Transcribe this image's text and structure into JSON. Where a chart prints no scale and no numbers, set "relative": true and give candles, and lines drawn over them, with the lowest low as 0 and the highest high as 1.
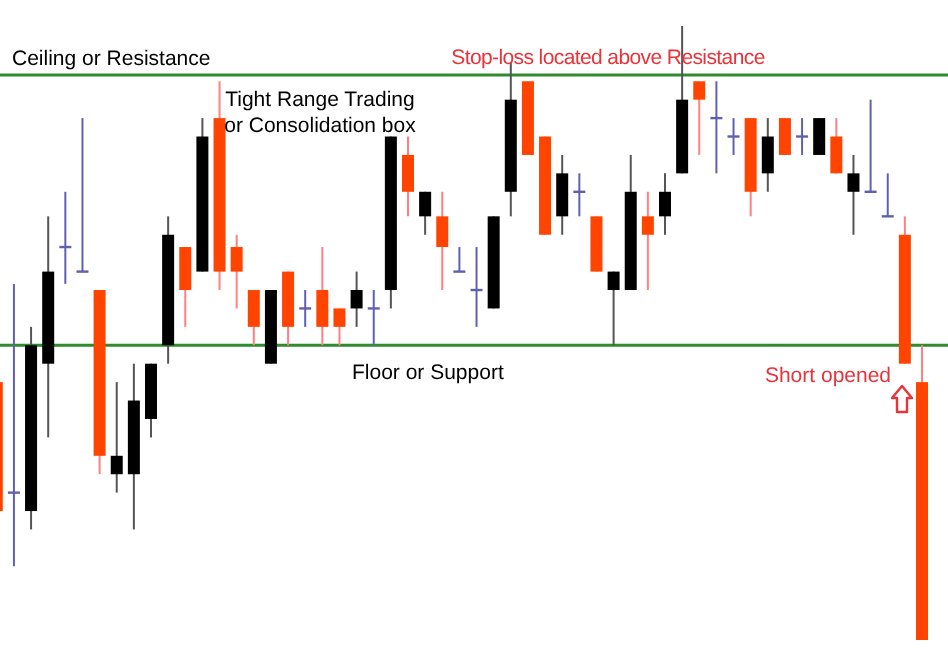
{
  "chart_data": {
    "type": "candlestick",
    "relative": true,
    "categories": [
      null,
      null,
      null,
      null,
      null,
      null,
      null,
      null,
      null,
      null,
      null,
      null,
      null,
      null,
      null,
      null,
      null,
      null,
      null,
      null,
      null,
      null,
      null,
      null,
      null,
      null,
      null,
      null,
      null,
      null,
      null,
      null,
      null,
      null,
      null,
      null,
      null,
      null,
      null,
      null,
      null,
      null,
      null,
      null,
      null,
      null,
      null,
      null,
      null,
      null,
      null,
      null,
      null,
      null,
      null
    ],
    "ohlc": [
      [
        0.42,
        0.42,
        0.21,
        0.21
      ],
      [
        0.24,
        0.58,
        0.12,
        0.24
      ],
      [
        0.21,
        0.51,
        0.18,
        0.48
      ],
      [
        0.45,
        0.69,
        0.33,
        0.6
      ],
      [
        0.64,
        0.73,
        0.58,
        0.64
      ],
      [
        0.6,
        0.85,
        0.6,
        0.6
      ],
      [
        0.57,
        0.57,
        0.27,
        0.3
      ],
      [
        0.27,
        0.42,
        0.24,
        0.3
      ],
      [
        0.27,
        0.45,
        0.18,
        0.39
      ],
      [
        0.36,
        0.45,
        0.33,
        0.45
      ],
      [
        0.48,
        0.69,
        0.45,
        0.66
      ],
      [
        0.64,
        0.64,
        0.51,
        0.57
      ],
      [
        0.6,
        0.85,
        0.6,
        0.82
      ],
      [
        0.85,
        0.91,
        0.57,
        0.6
      ],
      [
        0.64,
        0.66,
        0.54,
        0.6
      ],
      [
        0.57,
        0.57,
        0.48,
        0.51
      ],
      [
        0.45,
        0.57,
        0.45,
        0.57
      ],
      [
        0.6,
        0.6,
        0.48,
        0.51
      ],
      [
        0.54,
        0.57,
        0.51,
        0.54
      ],
      [
        0.57,
        0.64,
        0.48,
        0.51
      ],
      [
        0.54,
        0.54,
        0.48,
        0.51
      ],
      [
        0.54,
        0.6,
        0.51,
        0.57
      ],
      [
        0.54,
        0.57,
        0.48,
        0.54
      ],
      [
        0.57,
        0.82,
        0.54,
        0.82
      ],
      [
        0.79,
        0.82,
        0.69,
        0.73
      ],
      [
        0.69,
        0.73,
        0.66,
        0.73
      ],
      [
        0.69,
        0.73,
        0.57,
        0.64
      ],
      [
        0.6,
        0.64,
        0.6,
        0.6
      ],
      [
        0.57,
        0.64,
        0.51,
        0.57
      ],
      [
        0.54,
        0.69,
        0.54,
        0.69
      ],
      [
        0.73,
        0.94,
        0.69,
        0.88
      ],
      [
        0.91,
        0.91,
        0.79,
        0.79
      ],
      [
        0.82,
        0.82,
        0.66,
        0.66
      ],
      [
        0.69,
        0.79,
        0.66,
        0.76
      ],
      [
        0.73,
        0.76,
        0.69,
        0.73
      ],
      [
        0.69,
        0.69,
        0.6,
        0.6
      ],
      [
        0.57,
        0.6,
        0.48,
        0.6
      ],
      [
        0.57,
        0.79,
        0.57,
        0.73
      ],
      [
        0.69,
        0.73,
        0.57,
        0.66
      ],
      [
        0.69,
        0.76,
        0.66,
        0.73
      ],
      [
        0.76,
        1,
        0.76,
        0.88
      ],
      [
        0.91,
        0.91,
        0.79,
        0.88
      ],
      [
        0.85,
        0.91,
        0.76,
        0.85
      ],
      [
        0.82,
        0.85,
        0.79,
        0.82
      ],
      [
        0.85,
        0.85,
        0.69,
        0.73
      ],
      [
        0.76,
        0.85,
        0.73,
        0.82
      ],
      [
        0.85,
        0.85,
        0.79,
        0.79
      ],
      [
        0.82,
        0.85,
        0.79,
        0.82
      ],
      [
        0.79,
        0.85,
        0.79,
        0.85
      ],
      [
        0.82,
        0.85,
        0.76,
        0.76
      ],
      [
        0.73,
        0.79,
        0.66,
        0.76
      ],
      [
        0.73,
        0.88,
        0.73,
        0.73
      ],
      [
        0.69,
        0.76,
        0.69,
        0.69
      ],
      [
        0.66,
        0.69,
        0.45,
        0.45
      ],
      [
        0.42,
        0.48,
        0,
        0
      ]
    ],
    "colors": [
      "#ff4400",
      "#6060b0",
      "#000000",
      "#000000",
      "#6060b0",
      "#6060b0",
      "#ff4400",
      "#000000",
      "#000000",
      "#000000",
      "#000000",
      "#ff4400",
      "#000000",
      "#ff4400",
      "#ff4400",
      "#ff4400",
      "#000000",
      "#ff4400",
      "#6060b0",
      "#ff4400",
      "#ff4400",
      "#000000",
      "#6060b0",
      "#000000",
      "#ff4400",
      "#000000",
      "#ff4400",
      "#6060b0",
      "#6060b0",
      "#000000",
      "#000000",
      "#ff4400",
      "#ff4400",
      "#000000",
      "#6060b0",
      "#ff4400",
      "#000000",
      "#000000",
      "#ff4400",
      "#000000",
      "#000000",
      "#ff4400",
      "#6060b0",
      "#6060b0",
      "#ff4400",
      "#000000",
      "#ff4400",
      "#6060b0",
      "#000000",
      "#ff4400",
      "#000000",
      "#6060b0",
      "#6060b0",
      "#ff4400",
      "#ff4400"
    ],
    "ref_lines": [
      {
        "axis": "y",
        "value": 0.92,
        "label": "Ceiling or Resistance",
        "color": "#2e8b2e"
      },
      {
        "axis": "y",
        "value": 0.48,
        "label": "Floor or Support",
        "color": "#2e8b2e"
      }
    ],
    "annotations": [
      "Tight Range Trading\nor Consolidation box",
      "Stop-loss located above Resistance",
      "Short opened"
    ]
  }
}
